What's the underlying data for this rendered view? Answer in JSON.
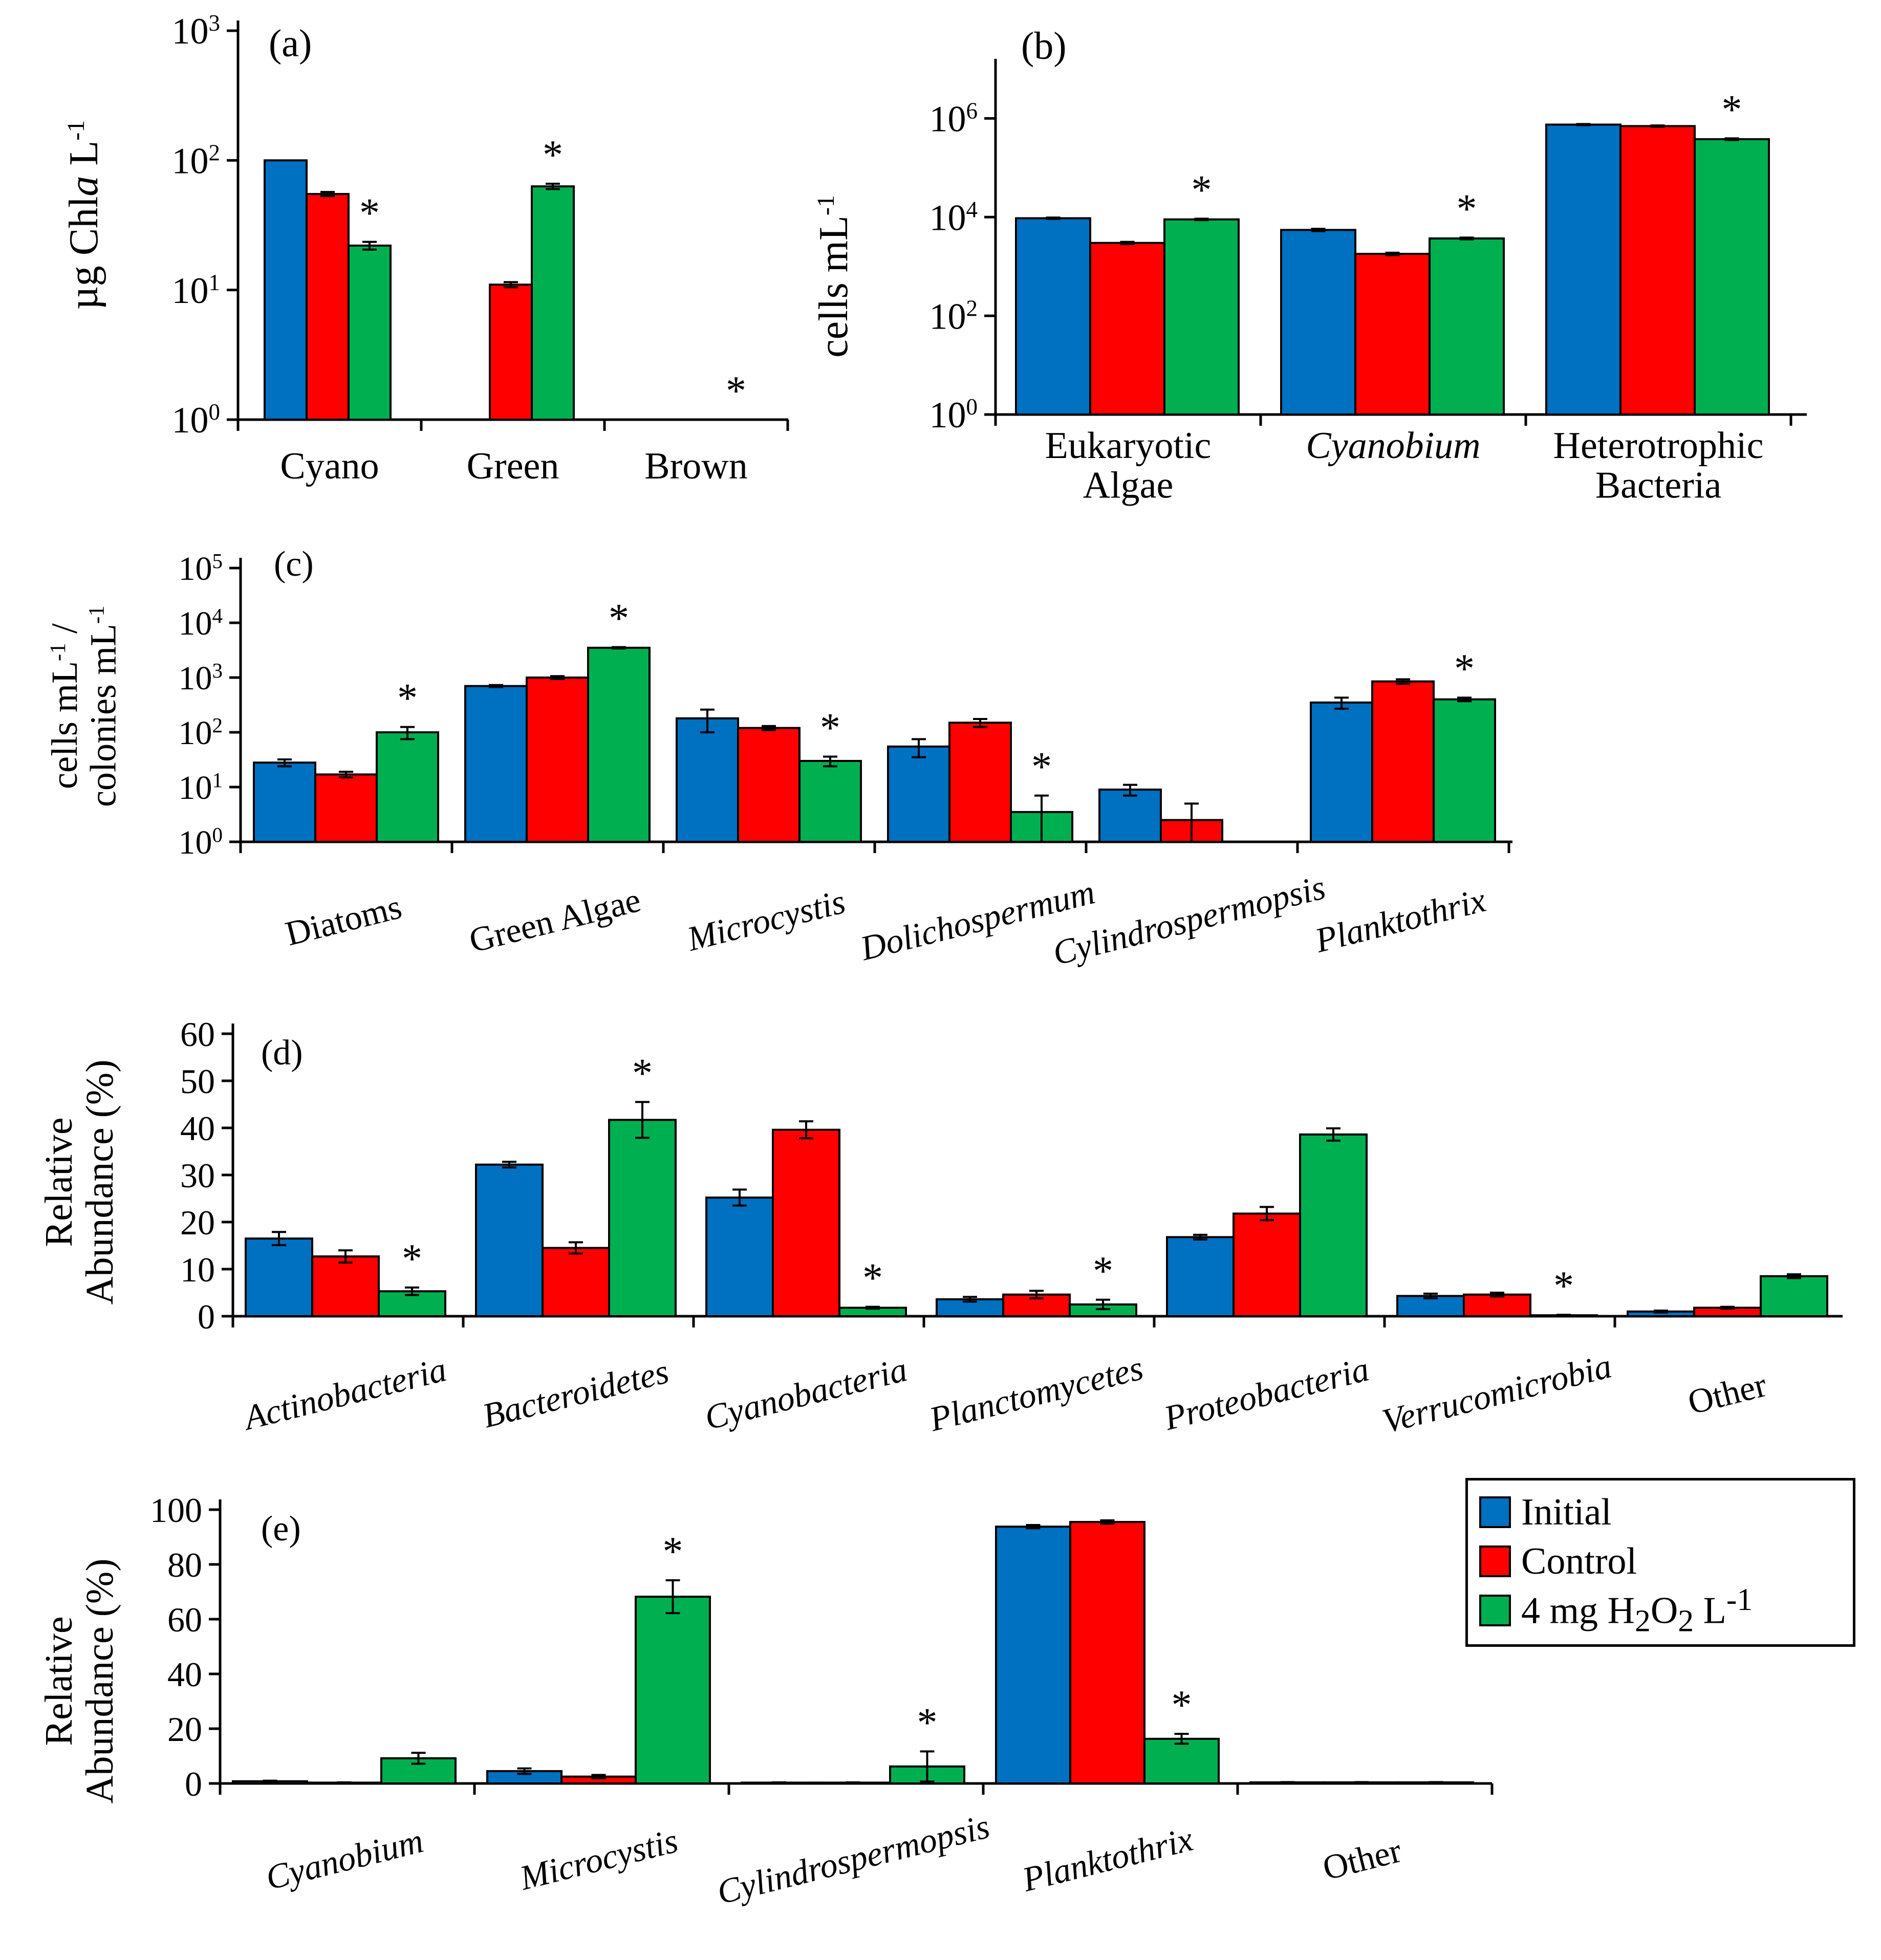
{
  "legend": {
    "items": [
      {
        "label": "Initial",
        "color": "#0070C0"
      },
      {
        "label": "Control",
        "color": "#FF0000"
      },
      {
        "label": "4 mg H2O2 L-1",
        "color": "#00B050"
      }
    ]
  },
  "chart_data": [
    {
      "panel": "(a)",
      "type": "bar",
      "scale": "log",
      "ylabel": "µg Chla L-1",
      "ylim": [
        1,
        1000
      ],
      "yticks": [
        {
          "base": "10",
          "exp": "0"
        },
        {
          "base": "10",
          "exp": "1"
        },
        {
          "base": "10",
          "exp": "2"
        },
        {
          "base": "10",
          "exp": "3"
        }
      ],
      "categories": [
        "Cyano",
        "Green",
        "Brown"
      ],
      "series": [
        {
          "name": "Initial",
          "values": [
            100,
            null,
            null
          ],
          "errors": [
            0,
            0,
            0
          ]
        },
        {
          "name": "Control",
          "values": [
            55,
            11,
            null
          ],
          "errors": [
            2,
            0.5,
            0
          ]
        },
        {
          "name": "4 mg H2O2 L-1",
          "values": [
            22,
            63,
            null
          ],
          "errors": [
            1.5,
            3,
            0
          ]
        }
      ],
      "significance": [
        "*",
        "*",
        "*"
      ]
    },
    {
      "panel": "(b)",
      "type": "bar",
      "scale": "log",
      "ylabel": "cells mL-1",
      "ylim": [
        1,
        10000000
      ],
      "yticks": [
        {
          "base": "10",
          "exp": "0"
        },
        {
          "base": "10",
          "exp": "2"
        },
        {
          "base": "10",
          "exp": "4"
        },
        {
          "base": "10",
          "exp": "6"
        }
      ],
      "categories": [
        "Eukaryotic Algae",
        "Cyanobium",
        "Heterotrophic Bacteria"
      ],
      "series": [
        {
          "name": "Initial",
          "values": [
            9500,
            5500,
            750000
          ],
          "errors": [
            300,
            300,
            20000
          ]
        },
        {
          "name": "Control",
          "values": [
            3000,
            1800,
            700000
          ],
          "errors": [
            150,
            100,
            20000
          ]
        },
        {
          "name": "4 mg H2O2 L-1",
          "values": [
            9000,
            3700,
            380000
          ],
          "errors": [
            300,
            150,
            15000
          ]
        }
      ],
      "significance": [
        "*",
        "*",
        "*"
      ]
    },
    {
      "panel": "(c)",
      "type": "bar",
      "scale": "log",
      "ylabel": "cells mL-1 / colonies mL-1",
      "ylim": [
        1,
        100000
      ],
      "yticks": [
        {
          "base": "10",
          "exp": "0"
        },
        {
          "base": "10",
          "exp": "1"
        },
        {
          "base": "10",
          "exp": "2"
        },
        {
          "base": "10",
          "exp": "3"
        },
        {
          "base": "10",
          "exp": "4"
        },
        {
          "base": "10",
          "exp": "5"
        }
      ],
      "categories": [
        "Diatoms",
        "Green Algae",
        "Microcystis",
        "Dolichospermum",
        "Cylindrospermopsis",
        "Planktothrix"
      ],
      "series": [
        {
          "name": "Initial",
          "values": [
            28,
            700,
            180,
            55,
            9,
            350
          ],
          "errors": [
            4,
            30,
            80,
            20,
            2,
            80
          ]
        },
        {
          "name": "Control",
          "values": [
            17,
            1000,
            120,
            150,
            2.5,
            850
          ],
          "errors": [
            2,
            60,
            10,
            25,
            2.5,
            80
          ]
        },
        {
          "name": "4 mg H2O2 L-1",
          "values": [
            100,
            3500,
            30,
            3.5,
            null,
            400
          ],
          "errors": [
            25,
            100,
            6,
            3.5,
            0,
            30
          ]
        }
      ],
      "significance": [
        "*",
        "*",
        "*",
        "*",
        "",
        "*"
      ]
    },
    {
      "panel": "(d)",
      "type": "bar",
      "scale": "linear",
      "ylabel": "Relative Abundance (%)",
      "ylim": [
        0,
        60
      ],
      "yticks": [
        0,
        10,
        20,
        30,
        40,
        50,
        60
      ],
      "categories": [
        "Actinobacteria",
        "Bacteroidetes",
        "Cyanobacteria",
        "Planctomycetes",
        "Proteobacteria",
        "Verrucomicrobia",
        "Other"
      ],
      "series": [
        {
          "name": "Initial",
          "values": [
            16.5,
            32.2,
            25.2,
            3.6,
            16.8,
            4.3,
            1.0
          ],
          "errors": [
            1.4,
            0.6,
            1.7,
            0.5,
            0.5,
            0.5,
            0.2
          ]
        },
        {
          "name": "Control",
          "values": [
            12.7,
            14.5,
            39.6,
            4.6,
            21.8,
            4.6,
            1.8
          ],
          "errors": [
            1.3,
            1.2,
            1.8,
            0.8,
            1.4,
            0.4,
            0.2
          ]
        },
        {
          "name": "4 mg H2O2 L-1",
          "values": [
            5.3,
            41.7,
            1.8,
            2.5,
            38.6,
            0.2,
            8.5
          ],
          "errors": [
            0.8,
            3.8,
            0.2,
            1.0,
            1.3,
            0.1,
            0.4
          ]
        }
      ],
      "significance": [
        "*",
        "*",
        "*",
        "*",
        "",
        "*",
        ""
      ]
    },
    {
      "panel": "(e)",
      "type": "bar",
      "scale": "linear",
      "ylabel": "Relative Abundance (%)",
      "ylim": [
        0,
        100
      ],
      "yticks": [
        0,
        20,
        40,
        60,
        80,
        100
      ],
      "categories": [
        "Cyanobium",
        "Microcystis",
        "Cylindrospermopsis",
        "Planktothrix",
        "Other"
      ],
      "series": [
        {
          "name": "Initial",
          "values": [
            0.8,
            4.5,
            0.3,
            93.8,
            0.4
          ],
          "errors": [
            0.2,
            1.0,
            0.1,
            0.6,
            0.1
          ]
        },
        {
          "name": "Control",
          "values": [
            0.3,
            2.5,
            0.3,
            95.5,
            0.4
          ],
          "errors": [
            0.1,
            0.6,
            0.1,
            0.6,
            0.1
          ]
        },
        {
          "name": "4 mg H2O2 L-1",
          "values": [
            9.2,
            68.2,
            6.2,
            16.3,
            0.4
          ],
          "errors": [
            2.0,
            6.0,
            5.5,
            1.8,
            0.1
          ]
        }
      ],
      "significance": [
        "",
        "*",
        "*",
        "*",
        ""
      ]
    }
  ]
}
